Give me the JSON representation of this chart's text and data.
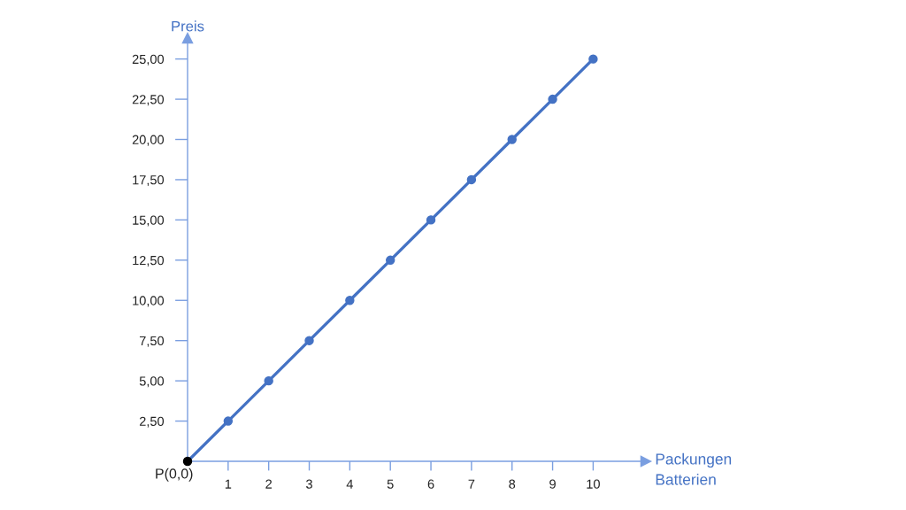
{
  "chart_data": {
    "type": "line",
    "xlabel": "Packungen\nBatterien",
    "ylabel": "Preis",
    "series": [
      {
        "x": [
          0,
          1,
          2,
          3,
          4,
          5,
          6,
          7,
          8,
          9,
          10
        ],
        "values": [
          0,
          2.5,
          5,
          7.5,
          10,
          12.5,
          15,
          17.5,
          20,
          22.5,
          25
        ],
        "color": "#4472c4",
        "colors": [
          "#000000",
          "#4472c4",
          "#4472c4",
          "#4472c4",
          "#4472c4",
          "#4472c4",
          "#4472c4",
          "#4472c4",
          "#4472c4",
          "#4472c4",
          "#4472c4"
        ]
      }
    ],
    "marker": "circle",
    "line_style": "solid",
    "xlim": [
      0,
      11.3
    ],
    "ylim": [
      0,
      26.3
    ],
    "xticks": [
      1,
      2,
      3,
      4,
      5,
      6,
      7,
      8,
      9,
      10
    ],
    "yticks": [
      {
        "value": 2.5,
        "label": "2,50"
      },
      {
        "value": 5,
        "label": "5,00"
      },
      {
        "value": 7.5,
        "label": "7,50"
      },
      {
        "value": 10,
        "label": "10,00"
      },
      {
        "value": 12.5,
        "label": "12,50"
      },
      {
        "value": 15,
        "label": "15,00"
      },
      {
        "value": 17.5,
        "label": "17,50"
      },
      {
        "value": 20,
        "label": "20,00"
      },
      {
        "value": 22.5,
        "label": "22,50"
      },
      {
        "value": 25,
        "label": "25,00"
      }
    ],
    "annotations": [
      {
        "text": "P(0,0)",
        "x": 0,
        "y": 0
      }
    ]
  }
}
